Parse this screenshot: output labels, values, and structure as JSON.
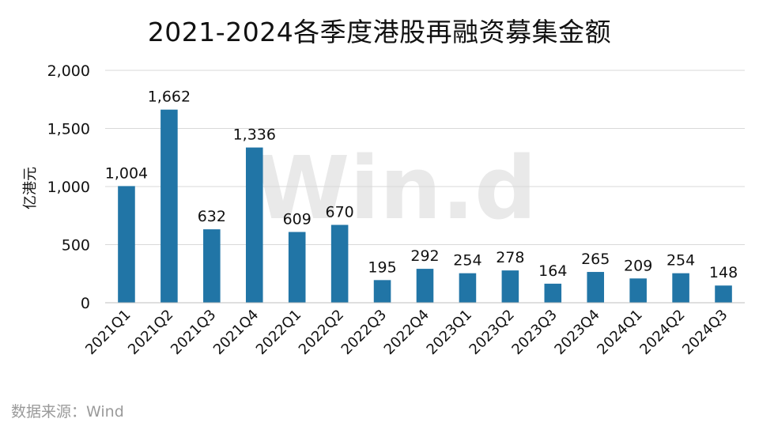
{
  "colors": {
    "bar": "#2175A6",
    "grid": "#d9d9d9",
    "text": "#111111",
    "source": "#9a9a9a",
    "watermark": "#e9e9e9"
  },
  "watermark": "Win.d",
  "source": "数据来源：Wind",
  "chart_data": {
    "type": "bar",
    "title": "2021-2024各季度港股再融资募集金额",
    "ylabel": "亿港元",
    "xlabel": "",
    "ylim": [
      0,
      2000
    ],
    "yticks": [
      0,
      500,
      1000,
      1500,
      2000
    ],
    "ytick_labels": [
      "0",
      "500",
      "1,000",
      "1,500",
      "2,000"
    ],
    "grid": true,
    "categories": [
      "2021Q1",
      "2021Q2",
      "2021Q3",
      "2021Q4",
      "2022Q1",
      "2022Q2",
      "2022Q3",
      "2022Q4",
      "2023Q1",
      "2023Q2",
      "2023Q3",
      "2023Q4",
      "2024Q1",
      "2024Q2",
      "2024Q3"
    ],
    "values": [
      1004,
      1662,
      632,
      1336,
      609,
      670,
      195,
      292,
      254,
      278,
      164,
      265,
      209,
      254,
      148
    ],
    "data_labels": [
      "1,004",
      "1,662",
      "632",
      "1,336",
      "609",
      "670",
      "195",
      "292",
      "254",
      "278",
      "164",
      "265",
      "209",
      "254",
      "148"
    ]
  }
}
